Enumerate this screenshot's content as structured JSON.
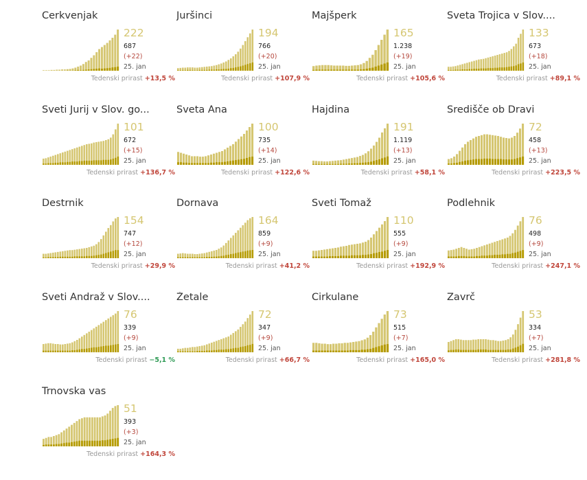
{
  "colors": {
    "bar_total": "#d5c671",
    "bar_new": "#b59b00",
    "big_number": "#d5c671",
    "delta": "#b4463b",
    "growth_up": "#c0463b",
    "growth_down": "#2e9a55"
  },
  "chart_data": [
    {
      "type": "bar",
      "title": "Cerkvenjak",
      "current": "222",
      "total": "687",
      "delta": "(+22)",
      "date": "25. jan",
      "growth_label": "Tedenski prirast",
      "growth": "+13,5 %",
      "values": [
        2,
        2,
        2,
        3,
        3,
        4,
        4,
        5,
        5,
        6,
        7,
        9,
        12,
        16,
        20,
        26,
        34,
        40,
        50,
        60,
        72,
        84,
        92,
        100,
        108,
        118,
        128,
        140,
        160
      ],
      "new": [
        0,
        0,
        0,
        0,
        0,
        0,
        0,
        0,
        0,
        1,
        1,
        1,
        2,
        3,
        2,
        3,
        4,
        5,
        6,
        7,
        8,
        9,
        8,
        9,
        10,
        11,
        13,
        14,
        16
      ]
    },
    {
      "type": "bar",
      "title": "Juršinci",
      "current": "194",
      "total": "766",
      "delta": "(+20)",
      "date": "25. jan",
      "growth_label": "Tedenski prirast",
      "growth": "+107,9 %",
      "values": [
        10,
        11,
        12,
        12,
        13,
        13,
        13,
        12,
        12,
        13,
        14,
        15,
        16,
        17,
        18,
        20,
        22,
        25,
        28,
        32,
        36,
        42,
        48,
        56,
        64,
        74,
        86,
        100,
        115,
        130,
        145,
        160
      ],
      "new": [
        2,
        2,
        2,
        2,
        3,
        3,
        2,
        2,
        2,
        3,
        3,
        3,
        3,
        4,
        4,
        4,
        5,
        5,
        6,
        7,
        7,
        8,
        10,
        11,
        13,
        15,
        17,
        20,
        23,
        26,
        29,
        32
      ]
    },
    {
      "type": "bar",
      "title": "Majšperk",
      "current": "165",
      "total": "1.238",
      "delta": "(+19)",
      "date": "25. jan",
      "growth_label": "Tedenski prirast",
      "growth": "+105,6 %",
      "values": [
        18,
        20,
        21,
        22,
        22,
        22,
        21,
        20,
        20,
        20,
        20,
        19,
        19,
        20,
        21,
        22,
        25,
        30,
        38,
        50,
        62,
        80,
        100,
        120,
        140,
        160
      ],
      "new": [
        3,
        4,
        4,
        4,
        4,
        4,
        4,
        4,
        4,
        4,
        4,
        4,
        4,
        4,
        4,
        4,
        5,
        6,
        8,
        10,
        12,
        16,
        20,
        24,
        28,
        32
      ]
    },
    {
      "type": "bar",
      "title": "Sveta Trojica v Slov....",
      "current": "133",
      "total": "673",
      "delta": "(+18)",
      "date": "25. jan",
      "growth_label": "Tedenski prirast",
      "growth": "+89,1 %",
      "values": [
        12,
        12,
        13,
        14,
        16,
        18,
        20,
        22,
        24,
        26,
        28,
        30,
        32,
        34,
        35,
        36,
        38,
        40,
        42,
        44,
        46,
        48,
        50,
        52,
        54,
        56,
        60,
        66,
        74,
        82,
        100,
        112,
        125
      ],
      "new": [
        2,
        2,
        2,
        3,
        3,
        3,
        4,
        4,
        4,
        5,
        5,
        6,
        6,
        6,
        7,
        7,
        7,
        8,
        8,
        8,
        9,
        9,
        10,
        10,
        10,
        11,
        12,
        13,
        14,
        16,
        20,
        22,
        25
      ]
    },
    {
      "type": "bar",
      "title": "Sveti Jurij v Slov. go...",
      "current": "101",
      "total": "672",
      "delta": "(+15)",
      "date": "25. jan",
      "growth_label": "Tedenski prirast",
      "growth": "+136,7 %",
      "values": [
        15,
        16,
        18,
        20,
        22,
        24,
        26,
        28,
        30,
        32,
        34,
        36,
        38,
        40,
        42,
        44,
        46,
        48,
        50,
        51,
        52,
        54,
        55,
        56,
        57,
        58,
        60,
        62,
        66,
        74,
        86,
        100
      ],
      "new": [
        3,
        3,
        4,
        4,
        4,
        5,
        5,
        6,
        6,
        6,
        7,
        7,
        8,
        8,
        8,
        9,
        9,
        10,
        10,
        10,
        10,
        11,
        11,
        11,
        11,
        12,
        12,
        12,
        13,
        15,
        17,
        20
      ]
    },
    {
      "type": "bar",
      "title": "Sveta Ana",
      "current": "100",
      "total": "735",
      "delta": "(+14)",
      "date": "25. jan",
      "growth_label": "Tedenski prirast",
      "growth": "+122,6 %",
      "values": [
        30,
        28,
        26,
        24,
        22,
        20,
        20,
        20,
        19,
        19,
        20,
        22,
        24,
        26,
        28,
        30,
        32,
        36,
        40,
        44,
        48,
        54,
        60,
        66,
        72,
        80,
        88,
        96
      ],
      "new": [
        6,
        6,
        5,
        5,
        4,
        4,
        4,
        4,
        4,
        4,
        4,
        4,
        5,
        5,
        6,
        6,
        6,
        7,
        8,
        9,
        10,
        11,
        12,
        13,
        14,
        16,
        18,
        19
      ]
    },
    {
      "type": "bar",
      "title": "Hajdina",
      "current": "191",
      "total": "1.119",
      "delta": "(+13)",
      "date": "25. jan",
      "growth_label": "Tedenski prirast",
      "growth": "+58,1 %",
      "values": [
        16,
        15,
        14,
        14,
        13,
        13,
        14,
        15,
        16,
        17,
        18,
        20,
        22,
        24,
        26,
        28,
        30,
        34,
        38,
        44,
        52,
        62,
        74,
        88,
        104,
        124,
        140,
        158
      ],
      "new": [
        3,
        3,
        3,
        3,
        3,
        3,
        3,
        3,
        3,
        3,
        4,
        4,
        4,
        5,
        5,
        6,
        6,
        7,
        8,
        9,
        10,
        12,
        15,
        18,
        21,
        25,
        28,
        32
      ]
    },
    {
      "type": "bar",
      "title": "Središče ob Dravi",
      "current": "72",
      "total": "458",
      "delta": "(+13)",
      "date": "25. jan",
      "growth_label": "Tedenski prirast",
      "growth": "+223,5 %",
      "values": [
        14,
        16,
        20,
        26,
        34,
        42,
        50,
        56,
        60,
        64,
        68,
        70,
        72,
        74,
        74,
        73,
        72,
        71,
        70,
        68,
        66,
        65,
        64,
        66,
        70,
        78,
        88,
        100
      ],
      "new": [
        3,
        3,
        4,
        5,
        7,
        8,
        10,
        11,
        12,
        13,
        14,
        14,
        14,
        15,
        15,
        15,
        14,
        14,
        14,
        14,
        13,
        13,
        13,
        13,
        14,
        16,
        18,
        20
      ]
    },
    {
      "type": "bar",
      "title": "Destrnik",
      "current": "154",
      "total": "747",
      "delta": "(+12)",
      "date": "25. jan",
      "growth_label": "Tedenski prirast",
      "growth": "+29,9 %",
      "values": [
        12,
        12,
        13,
        14,
        15,
        16,
        17,
        18,
        19,
        20,
        21,
        22,
        22,
        23,
        24,
        25,
        26,
        27,
        28,
        30,
        32,
        34,
        38,
        44,
        52,
        62,
        72,
        82,
        90,
        100,
        108,
        112
      ],
      "new": [
        2,
        2,
        3,
        3,
        3,
        3,
        3,
        4,
        4,
        4,
        4,
        4,
        4,
        5,
        5,
        5,
        5,
        5,
        6,
        6,
        6,
        7,
        8,
        9,
        10,
        12,
        14,
        16,
        18,
        20,
        22,
        22
      ]
    },
    {
      "type": "bar",
      "title": "Dornava",
      "current": "164",
      "total": "859",
      "delta": "(+9)",
      "date": "25. jan",
      "growth_label": "Tedenski prirast",
      "growth": "+41,2 %",
      "values": [
        14,
        15,
        16,
        15,
        14,
        14,
        14,
        13,
        13,
        14,
        15,
        16,
        18,
        20,
        22,
        24,
        26,
        30,
        34,
        40,
        48,
        56,
        64,
        72,
        80,
        88,
        96,
        104,
        112,
        120,
        126,
        130
      ],
      "new": [
        3,
        3,
        3,
        3,
        3,
        3,
        3,
        3,
        3,
        3,
        3,
        3,
        4,
        4,
        4,
        5,
        5,
        6,
        7,
        8,
        10,
        11,
        13,
        14,
        16,
        18,
        19,
        21,
        22,
        24,
        25,
        26
      ]
    },
    {
      "type": "bar",
      "title": "Sveti Tomaž",
      "current": "110",
      "total": "555",
      "delta": "(+9)",
      "date": "25. jan",
      "growth_label": "Tedenski prirast",
      "growth": "+192,9 %",
      "values": [
        18,
        18,
        19,
        20,
        21,
        22,
        23,
        24,
        25,
        26,
        28,
        29,
        30,
        32,
        33,
        34,
        35,
        36,
        38,
        40,
        44,
        50,
        58,
        66,
        74,
        82,
        90,
        100
      ],
      "new": [
        4,
        4,
        4,
        4,
        4,
        4,
        5,
        5,
        5,
        5,
        6,
        6,
        6,
        6,
        7,
        7,
        7,
        7,
        8,
        8,
        9,
        10,
        12,
        13,
        15,
        16,
        18,
        20
      ]
    },
    {
      "type": "bar",
      "title": "Podlehnik",
      "current": "76",
      "total": "498",
      "delta": "(+9)",
      "date": "25. jan",
      "growth_label": "Tedenski prirast",
      "growth": "+247,1 %",
      "values": [
        18,
        19,
        20,
        22,
        24,
        26,
        24,
        22,
        20,
        21,
        22,
        24,
        26,
        28,
        30,
        32,
        34,
        36,
        38,
        40,
        42,
        44,
        46,
        48,
        52,
        58,
        66,
        76,
        86,
        96
      ],
      "new": [
        4,
        4,
        4,
        4,
        5,
        5,
        5,
        4,
        4,
        4,
        4,
        5,
        5,
        6,
        6,
        6,
        7,
        7,
        8,
        8,
        8,
        9,
        9,
        10,
        10,
        12,
        13,
        15,
        17,
        19
      ]
    },
    {
      "type": "bar",
      "title": "Sveti Andraž v Slov....",
      "current": "76",
      "total": "339",
      "delta": "(+9)",
      "date": "25. jan",
      "growth_label": "Tedenski prirast",
      "growth": "−5,1 %",
      "values": [
        20,
        21,
        22,
        22,
        21,
        20,
        20,
        19,
        19,
        20,
        21,
        22,
        24,
        27,
        30,
        34,
        38,
        42,
        46,
        50,
        54,
        58,
        62,
        66,
        70,
        74,
        78,
        82,
        86,
        90,
        94,
        100
      ],
      "new": [
        4,
        4,
        4,
        4,
        4,
        4,
        4,
        4,
        4,
        4,
        4,
        4,
        5,
        5,
        6,
        7,
        8,
        8,
        9,
        10,
        11,
        12,
        12,
        13,
        14,
        15,
        16,
        16,
        17,
        18,
        19,
        20
      ]
    },
    {
      "type": "bar",
      "title": "Žetale",
      "current": "72",
      "total": "347",
      "delta": "(+9)",
      "date": "25. jan",
      "growth_label": "Tedenski prirast",
      "growth": "+66,7 %",
      "values": [
        8,
        8,
        9,
        10,
        10,
        11,
        12,
        12,
        13,
        14,
        15,
        16,
        18,
        20,
        22,
        24,
        26,
        28,
        30,
        32,
        34,
        36,
        40,
        44,
        48,
        52,
        58,
        64,
        70,
        78,
        86,
        94
      ],
      "new": [
        2,
        2,
        2,
        2,
        2,
        2,
        2,
        2,
        3,
        3,
        3,
        3,
        4,
        4,
        4,
        5,
        5,
        6,
        6,
        6,
        7,
        7,
        8,
        9,
        10,
        10,
        12,
        13,
        14,
        16,
        17,
        19
      ]
    },
    {
      "type": "bar",
      "title": "Cirkulane",
      "current": "73",
      "total": "515",
      "delta": "(+7)",
      "date": "25. jan",
      "growth_label": "Tedenski prirast",
      "growth": "+165,0 %",
      "values": [
        22,
        22,
        21,
        20,
        20,
        19,
        19,
        20,
        20,
        21,
        21,
        22,
        22,
        23,
        24,
        25,
        26,
        28,
        30,
        34,
        40,
        48,
        58,
        68,
        78,
        88,
        96
      ],
      "new": [
        4,
        4,
        4,
        4,
        4,
        4,
        4,
        4,
        4,
        4,
        4,
        4,
        4,
        5,
        5,
        5,
        5,
        6,
        6,
        7,
        8,
        10,
        12,
        14,
        16,
        18,
        19
      ]
    },
    {
      "type": "bar",
      "title": "Zavrč",
      "current": "53",
      "total": "334",
      "delta": "(+7)",
      "date": "25. jan",
      "growth_label": "Tedenski prirast",
      "growth": "+281,8 %",
      "values": [
        22,
        24,
        26,
        28,
        28,
        27,
        26,
        26,
        26,
        26,
        27,
        27,
        28,
        28,
        28,
        28,
        27,
        26,
        26,
        25,
        24,
        24,
        25,
        26,
        28,
        32,
        38,
        48,
        60,
        74,
        88
      ],
      "new": [
        4,
        5,
        5,
        6,
        6,
        5,
        5,
        5,
        5,
        5,
        5,
        5,
        6,
        6,
        6,
        6,
        5,
        5,
        5,
        5,
        5,
        5,
        5,
        5,
        6,
        6,
        8,
        10,
        12,
        15,
        18
      ]
    },
    {
      "type": "bar",
      "title": "Trnovska vas",
      "current": "51",
      "total": "393",
      "delta": "(+3)",
      "date": "25. jan",
      "growth_label": "Tedenski prirast",
      "growth": "+164,3 %",
      "values": [
        16,
        18,
        20,
        20,
        22,
        24,
        26,
        30,
        34,
        38,
        42,
        46,
        50,
        54,
        58,
        60,
        62,
        62,
        62,
        62,
        62,
        62,
        62,
        64,
        66,
        70,
        76,
        82,
        86,
        88
      ],
      "new": [
        3,
        4,
        4,
        4,
        4,
        5,
        5,
        6,
        7,
        8,
        8,
        9,
        10,
        11,
        12,
        12,
        12,
        12,
        12,
        12,
        12,
        12,
        12,
        13,
        13,
        14,
        15,
        16,
        17,
        18
      ]
    }
  ]
}
